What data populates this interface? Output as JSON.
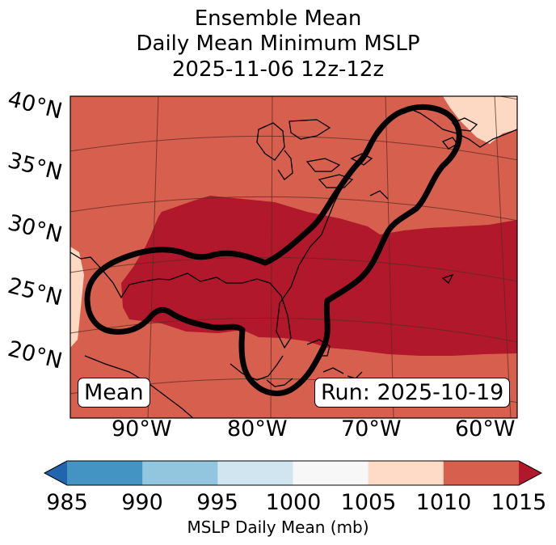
{
  "title": {
    "line1": "Ensemble Mean",
    "line2": "Daily Mean Minimum MSLP",
    "line3": "2025-11-06 12z-12z"
  },
  "map": {
    "lat_labels": [
      "40°N",
      "35°N",
      "30°N",
      "25°N",
      "20°N"
    ],
    "lon_labels": [
      "90°W",
      "80°W",
      "70°W",
      "60°W"
    ],
    "mean_label": "Mean",
    "run_label": "Run: 2025-10-19",
    "field_colors": {
      "1005-1010": "#fdd9c4",
      "1010-1015": "#d6604d",
      "over-1015": "#b2182b",
      "outline": "#000000"
    }
  },
  "colorbar": {
    "label": "MSLP Daily Mean (mb)",
    "ticks": [
      "985",
      "990",
      "995",
      "1000",
      "1005",
      "1010",
      "1015"
    ],
    "under_color": "#2166ac",
    "over_color": "#b2182b",
    "colors": [
      "#4393c3",
      "#92c5de",
      "#d1e5f0",
      "#f7f7f7",
      "#fddbc7",
      "#d6604d"
    ]
  }
}
